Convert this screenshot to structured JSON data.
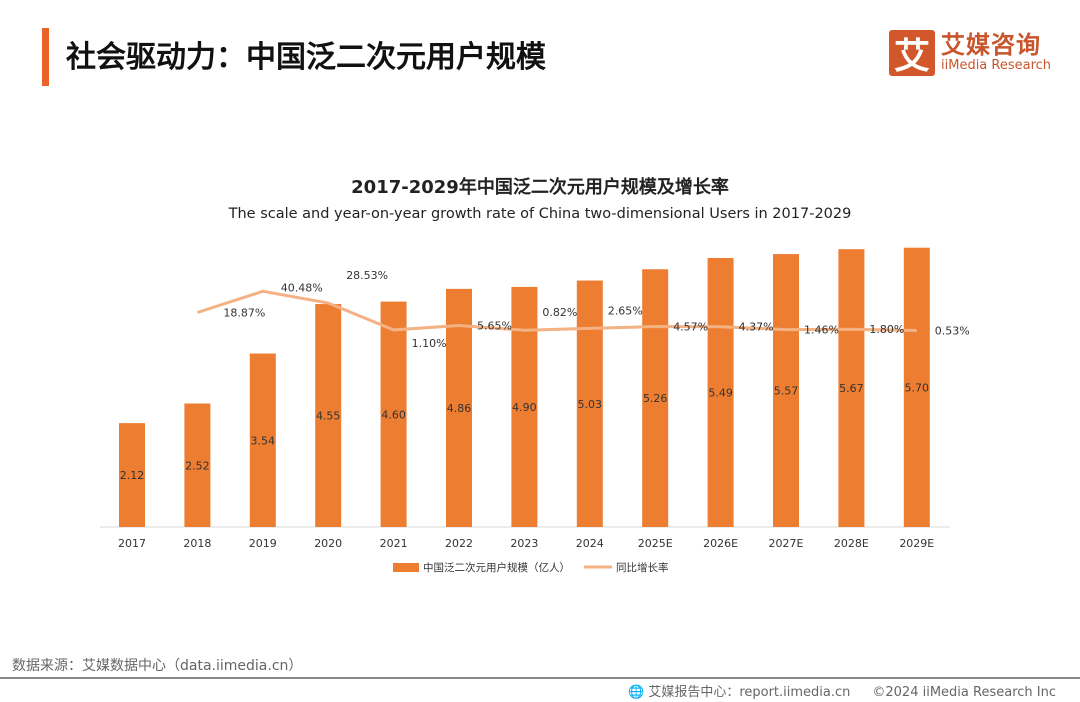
{
  "header": {
    "title": "社会驱动力：中国泛二次元用户规模",
    "logo_mark": "艾",
    "logo_cn": "艾媒咨询",
    "logo_en": "iiMedia Research"
  },
  "chart_data": {
    "type": "bar+line",
    "title": "2017-2029年中国泛二次元用户规模及增长率",
    "subtitle": "The scale and year-on-year growth rate of China two-dimensional Users in 2017-2029",
    "categories": [
      "2017",
      "2018",
      "2019",
      "2020",
      "2021",
      "2022",
      "2023",
      "2024",
      "2025E",
      "2026E",
      "2027E",
      "2028E",
      "2029E"
    ],
    "series": [
      {
        "name": "中国泛二次元用户规模（亿人）",
        "type": "bar",
        "color": "#ed7d31",
        "values": [
          2.12,
          2.52,
          3.54,
          4.55,
          4.6,
          4.86,
          4.9,
          5.03,
          5.26,
          5.49,
          5.57,
          5.67,
          5.7
        ],
        "labels": [
          "2.12",
          "2.52",
          "3.54",
          "4.55",
          "4.60",
          "4.86",
          "4.90",
          "5.03",
          "5.26",
          "5.49",
          "5.57",
          "5.67",
          "5.70"
        ]
      },
      {
        "name": "同比增长率",
        "type": "line",
        "color": "#f4b183",
        "values": [
          null,
          18.87,
          40.48,
          28.53,
          1.1,
          5.65,
          0.82,
          2.65,
          4.57,
          4.37,
          1.46,
          1.8,
          0.53
        ],
        "labels": [
          "",
          "18.87%",
          "40.48%",
          "28.53%",
          "1.10%",
          "5.65%",
          "0.82%",
          "2.65%",
          "4.57%",
          "4.37%",
          "1.46%",
          "1.80%",
          "0.53%"
        ]
      }
    ],
    "legend_position": "bottom",
    "grid": false
  },
  "footer": {
    "source": "数据来源：艾媒数据中心（data.iimedia.cn）",
    "report": "艾媒报告中心：report.iimedia.cn",
    "copyright": "©2024  iiMedia Research Inc"
  }
}
